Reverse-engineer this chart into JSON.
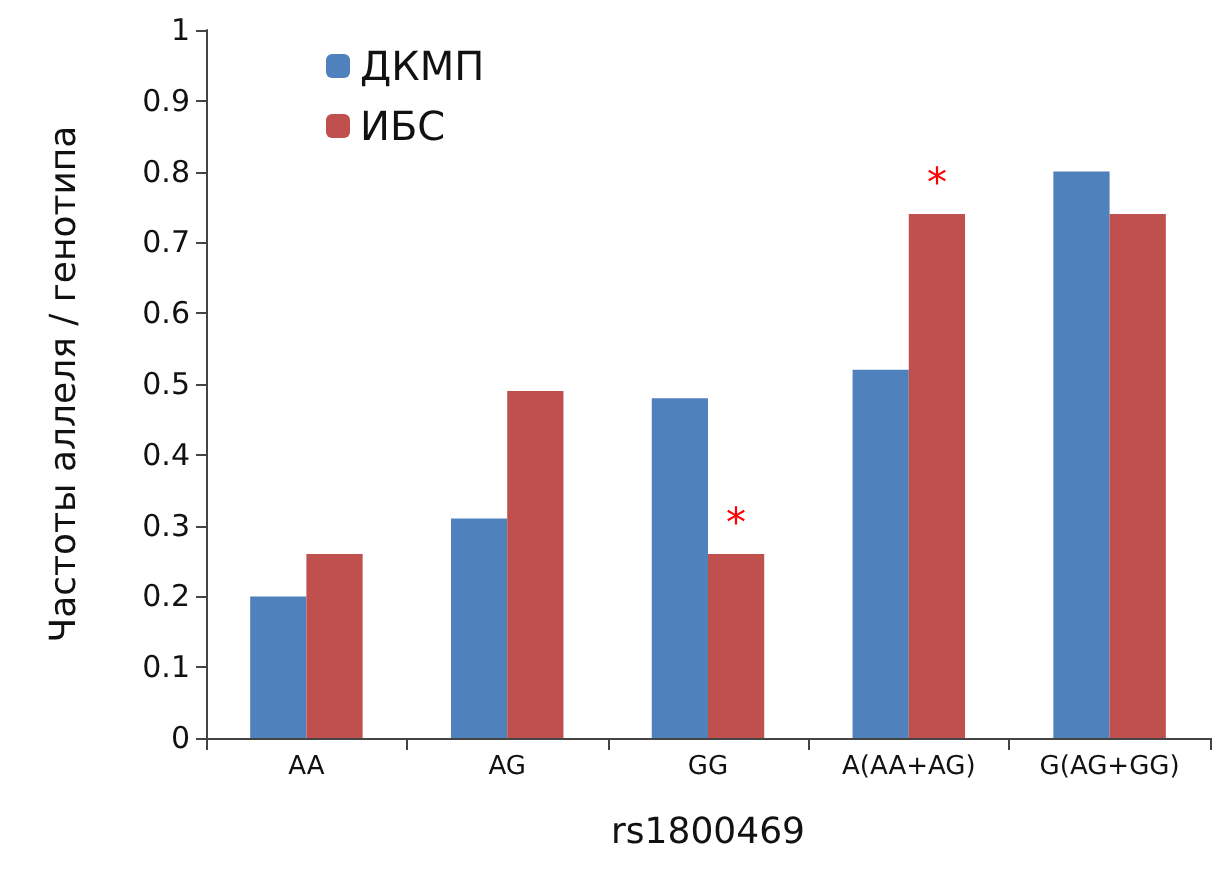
{
  "chart_data": {
    "type": "bar",
    "xlabel": "rs1800469",
    "ylabel": "Частоты аллеля / генотипа",
    "categories": [
      "AA",
      "AG",
      "GG",
      "A(AA+AG)",
      "G(AG+GG)"
    ],
    "series": [
      {
        "name": "ДКМП",
        "color": "#4f81bd",
        "values": [
          0.2,
          0.31,
          0.48,
          0.52,
          0.8
        ]
      },
      {
        "name": "ИБС",
        "color": "#c0504d",
        "values": [
          0.26,
          0.49,
          0.26,
          0.74,
          0.74
        ]
      }
    ],
    "ylim": [
      0,
      1
    ],
    "yticks": [
      0,
      0.1,
      0.2,
      0.3,
      0.4,
      0.5,
      0.6,
      0.7,
      0.8,
      0.9,
      1
    ],
    "annotations": [
      {
        "text": "*",
        "x": "GG",
        "y": 0.26
      },
      {
        "text": "*",
        "x": "A(AA+AG)",
        "y": 0.74
      }
    ],
    "grid": false,
    "legend": "top left"
  }
}
